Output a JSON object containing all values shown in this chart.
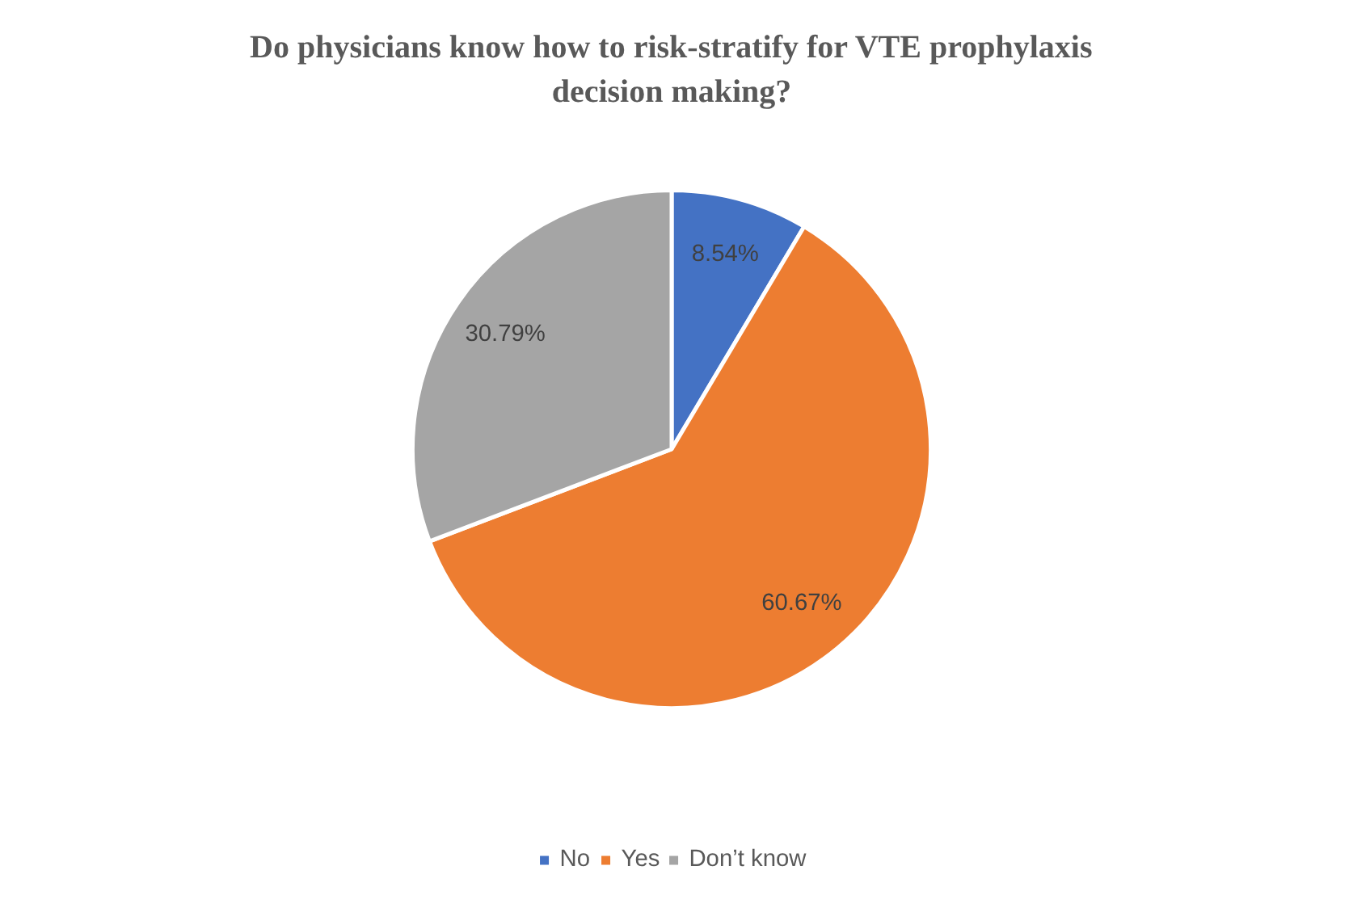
{
  "chart_data": {
    "type": "pie",
    "title": "Do physicians know how to risk-stratify for VTE prophylaxis\ndecision making?",
    "categories": [
      "No",
      "Yes",
      "Don’t know"
    ],
    "values": [
      8.54,
      60.67,
      30.79
    ],
    "colors": [
      "#4472c4",
      "#ed7d31",
      "#a5a5a5"
    ],
    "value_labels": [
      "8.54%",
      "60.67%",
      "30.79%"
    ],
    "legend": "bottom"
  }
}
